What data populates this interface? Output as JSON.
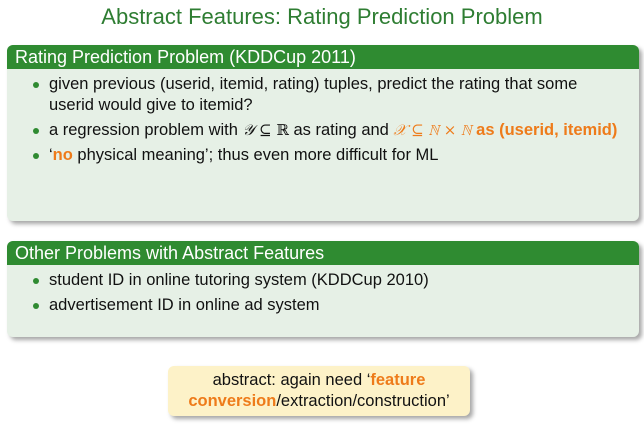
{
  "title": "Abstract Features: Rating Prediction Problem",
  "block1": {
    "header": "Rating Prediction Problem (KDDCup 2011)",
    "item1": "given previous (userid, itemid, rating) tuples, predict the rating that some userid would give to itemid?",
    "item2": {
      "pre": "a regression problem with ",
      "y_symbol": "𝒴",
      "subset1": " ⊆ ",
      "reals": "ℝ",
      "mid": " as rating and ",
      "x_part": "𝒳 ⊆ ℕ × ℕ",
      "hl": " as (userid, itemid)"
    },
    "item3": {
      "pre": "‘",
      "hl": "no",
      "post": " physical meaning’; thus even more difficult for ML"
    }
  },
  "block2": {
    "header": "Other Problems with Abstract Features",
    "item1": "student ID in online tutoring system (KDDCup 2010)",
    "item2": "advertisement ID in online ad system"
  },
  "note": {
    "pre": "abstract: again need ‘",
    "hl1": "feature",
    "hl2": "conversion",
    "post": "/extraction/construction’"
  }
}
